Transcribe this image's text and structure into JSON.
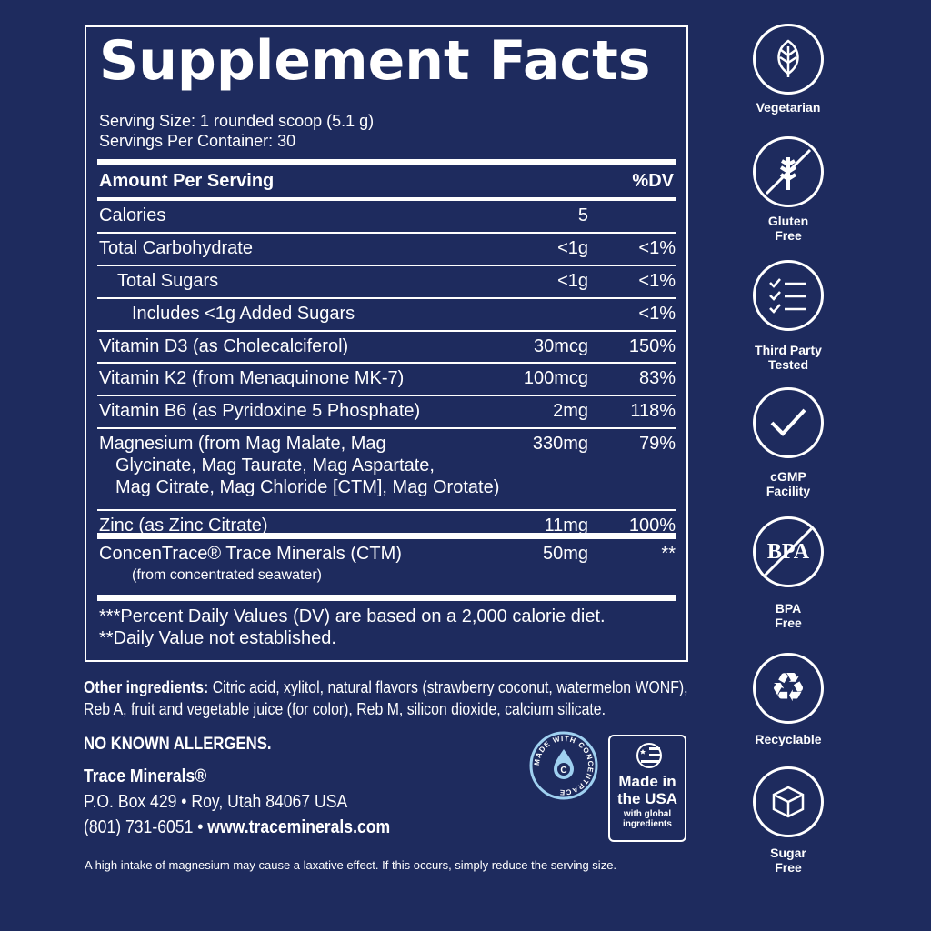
{
  "panel": {
    "title": "Supplement Facts",
    "serving_size": "Serving Size: 1 rounded scoop (5.1 g)",
    "servings_per_container": "Servings Per Container: 30",
    "header_amount": "Amount Per Serving",
    "header_dv": "%DV",
    "rows": [
      {
        "name": "Calories",
        "amount": "5",
        "dv": ""
      },
      {
        "name": "Total Carbohydrate",
        "amount": "<1g",
        "dv": "<1%"
      },
      {
        "name": "Total Sugars",
        "amount": "<1g",
        "dv": "<1%"
      },
      {
        "name": "Includes <1g Added Sugars",
        "amount": "",
        "dv": "<1%"
      },
      {
        "name": "Vitamin D3 (as Cholecalciferol)",
        "amount": "30mcg",
        "dv": "150%"
      },
      {
        "name": "Vitamin K2 (from Menaquinone MK-7)",
        "amount": "100mcg",
        "dv": "83%"
      },
      {
        "name": "Vitamin B6 (as Pyridoxine 5 Phosphate)",
        "amount": "2mg",
        "dv": "118%"
      },
      {
        "name": "Magnesium (from Mag Malate, Mag",
        "name2": "Glycinate, Mag Taurate, Mag Aspartate,",
        "name3": "Mag Citrate, Mag Chloride [CTM], Mag Orotate)",
        "amount": "330mg",
        "dv": "79%"
      },
      {
        "name": "Zinc (as Zinc Citrate)",
        "amount": "11mg",
        "dv": "100%"
      },
      {
        "name": "ConcenTrace® Trace Minerals (CTM)",
        "sub": "(from concentrated seawater)",
        "amount": "50mg",
        "dv": "**"
      }
    ],
    "footnote1": "***Percent Daily Values (DV) are based on a 2,000 calorie diet.",
    "footnote2": "**Daily Value not established."
  },
  "other_ingredients": {
    "label": "Other ingredients:",
    "text": " Citric acid, xylitol, natural flavors (strawberry coconut, watermelon WONF), Reb A, fruit and vegetable juice (for color), Reb M, silicon dioxide, calcium silicate."
  },
  "allergens": "NO KNOWN ALLERGENS.",
  "company": {
    "name": "Trace Minerals®",
    "address": "P.O. Box 429  • Roy, Utah 84067 USA",
    "phone": "(801) 731-6051 •",
    "website": "www.traceminerals.com"
  },
  "warning": "A high intake of magnesium may cause a laxative effect. If this occurs, simply reduce the serving size.",
  "badges": {
    "concentrace": "MADE WITH CONCENTRACE",
    "usa_line1": "Made in",
    "usa_line2": "the USA",
    "usa_line3": "with global ingredients"
  },
  "icons": [
    {
      "icon": "leaf-icon",
      "l1": "Vegetarian",
      "l2": ""
    },
    {
      "icon": "wheat-crossed-icon",
      "l1": "Gluten",
      "l2": "Free"
    },
    {
      "icon": "checklist-icon",
      "l1": "Third Party",
      "l2": "Tested"
    },
    {
      "icon": "check-icon",
      "l1": "cGMP",
      "l2": "Facility"
    },
    {
      "icon": "bpa-crossed-icon",
      "l1": "BPA",
      "l2": "Free",
      "glyph": "BPA"
    },
    {
      "icon": "recycle-icon",
      "l1": "Recyclable",
      "l2": ""
    },
    {
      "icon": "sugar-cube-icon",
      "l1": "Sugar",
      "l2": "Free"
    }
  ],
  "colors": {
    "background": "#1e2b5e",
    "accent": "#9fd0f0"
  }
}
